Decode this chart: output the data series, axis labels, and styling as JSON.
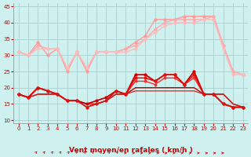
{
  "xlabel": "Vent moyen/en rafales ( km/h )",
  "background_color": "#cef0ee",
  "grid_color": "#aacfcc",
  "x": [
    0,
    1,
    2,
    3,
    4,
    5,
    6,
    7,
    8,
    9,
    10,
    11,
    12,
    13,
    14,
    15,
    16,
    17,
    18,
    19,
    20,
    21,
    22,
    23
  ],
  "series": [
    {
      "y": [
        31,
        30,
        34,
        30,
        32,
        25,
        31,
        25,
        31,
        31,
        31,
        32,
        34,
        36,
        41,
        41,
        41,
        42,
        42,
        42,
        42,
        33,
        25,
        24
      ],
      "color": "#ff9999",
      "lw": 1.0,
      "marker": "o",
      "ms": 2.0,
      "zorder": 3
    },
    {
      "y": [
        31,
        30,
        33,
        32,
        32,
        26,
        31,
        26,
        31,
        31,
        31,
        32,
        33,
        35,
        38,
        40,
        41,
        41,
        41,
        41,
        42,
        33,
        25,
        24
      ],
      "color": "#ffaaaa",
      "lw": 1.0,
      "marker": "o",
      "ms": 2.0,
      "zorder": 3
    },
    {
      "y": [
        31,
        30,
        32,
        32,
        32,
        26,
        31,
        26,
        31,
        31,
        31,
        31,
        32,
        35,
        37,
        39,
        40,
        40,
        40,
        41,
        41,
        32,
        24,
        24
      ],
      "color": "#ffbbbb",
      "lw": 1.0,
      "marker": "o",
      "ms": 2.0,
      "zorder": 3
    },
    {
      "y": [
        18,
        17,
        20,
        19,
        18,
        16,
        16,
        15,
        16,
        17,
        19,
        18,
        24,
        24,
        22,
        24,
        24,
        21,
        25,
        18,
        18,
        15,
        14,
        14
      ],
      "color": "#cc0000",
      "lw": 1.3,
      "marker": "o",
      "ms": 2.0,
      "zorder": 4
    },
    {
      "y": [
        18,
        17,
        20,
        19,
        18,
        16,
        16,
        14,
        15,
        16,
        19,
        18,
        23,
        23,
        22,
        24,
        24,
        21,
        24,
        18,
        18,
        15,
        14,
        14
      ],
      "color": "#dd1111",
      "lw": 1.1,
      "marker": "o",
      "ms": 1.8,
      "zorder": 4
    },
    {
      "y": [
        18,
        17,
        20,
        19,
        18,
        16,
        16,
        14,
        15,
        16,
        19,
        18,
        22,
        22,
        21,
        23,
        23,
        21,
        23,
        18,
        18,
        15,
        14,
        14
      ],
      "color": "#ee3333",
      "lw": 1.0,
      "marker": "o",
      "ms": 1.8,
      "zorder": 3
    },
    {
      "y": [
        18,
        17,
        18,
        18,
        18,
        16,
        16,
        15,
        15,
        16,
        18,
        18,
        20,
        20,
        20,
        20,
        20,
        20,
        20,
        18,
        18,
        18,
        15,
        14
      ],
      "color": "#bb0000",
      "lw": 1.0,
      "marker": null,
      "ms": 0,
      "zorder": 2
    },
    {
      "y": [
        18,
        17,
        18,
        18,
        18,
        16,
        16,
        15,
        15,
        16,
        18,
        18,
        19,
        19,
        19,
        19,
        19,
        19,
        19,
        18,
        18,
        18,
        15,
        14
      ],
      "color": "#cc2222",
      "lw": 0.9,
      "marker": null,
      "ms": 0,
      "zorder": 2
    }
  ],
  "ylim": [
    9,
    46
  ],
  "yticks": [
    10,
    15,
    20,
    25,
    30,
    35,
    40,
    45
  ],
  "xticks": [
    0,
    1,
    2,
    3,
    4,
    5,
    6,
    7,
    8,
    9,
    10,
    11,
    12,
    13,
    14,
    15,
    16,
    17,
    18,
    19,
    20,
    21,
    22,
    23
  ],
  "arrow_diagonal_max": 10,
  "tick_color": "#cc0000",
  "tick_fontsize": 5.0,
  "xlabel_fontsize": 6.5,
  "xlabel_color": "#cc0000"
}
